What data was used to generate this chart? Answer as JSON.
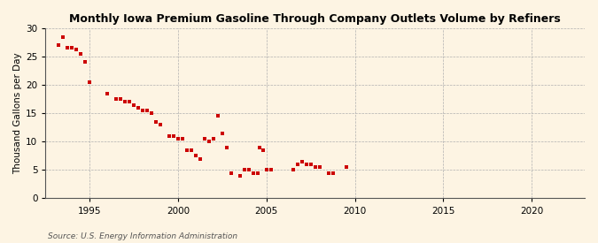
{
  "title": "Monthly Iowa Premium Gasoline Through Company Outlets Volume by Refiners",
  "ylabel": "Thousand Gallons per Day",
  "source": "Source: U.S. Energy Information Administration",
  "background_color": "#fdf4e3",
  "plot_background_color": "#fdf4e3",
  "dot_color": "#cc0000",
  "marker_size": 3.5,
  "xlim": [
    1992.5,
    2023
  ],
  "ylim": [
    0,
    30
  ],
  "xticks": [
    1995,
    2000,
    2005,
    2010,
    2015,
    2020
  ],
  "yticks": [
    0,
    5,
    10,
    15,
    20,
    25,
    30
  ],
  "data_points": [
    [
      1993.25,
      27.0
    ],
    [
      1993.5,
      28.5
    ],
    [
      1993.75,
      26.5
    ],
    [
      1994.0,
      26.5
    ],
    [
      1994.25,
      26.2
    ],
    [
      1994.5,
      25.5
    ],
    [
      1994.75,
      24.0
    ],
    [
      1995.0,
      20.5
    ],
    [
      1996.0,
      18.5
    ],
    [
      1996.5,
      17.5
    ],
    [
      1996.75,
      17.5
    ],
    [
      1997.0,
      17.0
    ],
    [
      1997.25,
      17.0
    ],
    [
      1997.5,
      16.5
    ],
    [
      1997.75,
      16.0
    ],
    [
      1998.0,
      15.5
    ],
    [
      1998.25,
      15.5
    ],
    [
      1998.5,
      15.0
    ],
    [
      1998.75,
      13.5
    ],
    [
      1999.0,
      13.0
    ],
    [
      1999.5,
      11.0
    ],
    [
      1999.75,
      11.0
    ],
    [
      2000.0,
      10.5
    ],
    [
      2000.25,
      10.5
    ],
    [
      2000.5,
      8.5
    ],
    [
      2000.75,
      8.5
    ],
    [
      2001.0,
      7.5
    ],
    [
      2001.25,
      7.0
    ],
    [
      2001.5,
      10.5
    ],
    [
      2001.75,
      10.0
    ],
    [
      2002.0,
      10.5
    ],
    [
      2002.25,
      14.5
    ],
    [
      2002.5,
      11.5
    ],
    [
      2002.75,
      9.0
    ],
    [
      2003.0,
      4.5
    ],
    [
      2003.5,
      4.0
    ],
    [
      2003.75,
      5.0
    ],
    [
      2004.0,
      5.0
    ],
    [
      2004.25,
      4.5
    ],
    [
      2004.5,
      4.5
    ],
    [
      2004.6,
      9.0
    ],
    [
      2004.8,
      8.5
    ],
    [
      2005.0,
      5.0
    ],
    [
      2005.25,
      5.0
    ],
    [
      2006.5,
      5.0
    ],
    [
      2006.75,
      6.0
    ],
    [
      2007.0,
      6.5
    ],
    [
      2007.25,
      6.0
    ],
    [
      2007.5,
      6.0
    ],
    [
      2007.75,
      5.5
    ],
    [
      2008.0,
      5.5
    ],
    [
      2008.5,
      4.5
    ],
    [
      2008.75,
      4.5
    ],
    [
      2009.5,
      5.5
    ]
  ]
}
